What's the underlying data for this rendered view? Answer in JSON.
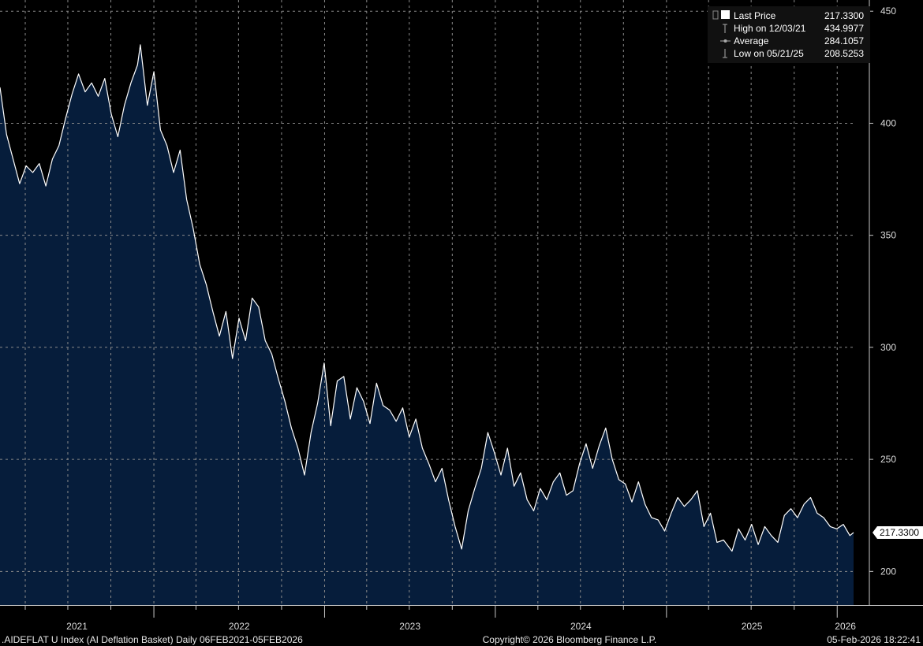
{
  "chart_data": {
    "type": "area",
    "title": ".AIDEFLAT U Index (AI Deflation Basket) Daily 06FEB2021-05FEB2026",
    "ylim": [
      185,
      455
    ],
    "y_ticks": [
      "450",
      "400",
      "350",
      "300",
      "250",
      "200"
    ],
    "x_year_labels": [
      "2021",
      "2022",
      "2023",
      "2024",
      "2025",
      "2026"
    ],
    "grid": true,
    "legend_position": "top-right",
    "legend": [
      {
        "label": "Last Price",
        "value": "217.3300"
      },
      {
        "label": "High on 12/03/21",
        "value": "434.9977"
      },
      {
        "label": "Average",
        "value": "284.1057"
      },
      {
        "label": "Low on 05/21/25",
        "value": "208.5253"
      }
    ],
    "last_value_label": "217.3300",
    "series": [
      {
        "values": [
          [
            "2021-02-06",
            416
          ],
          [
            "2021-02-20",
            395
          ],
          [
            "2021-03-06",
            384
          ],
          [
            "2021-03-20",
            373
          ],
          [
            "2021-04-03",
            381
          ],
          [
            "2021-04-17",
            378
          ],
          [
            "2021-05-01",
            382
          ],
          [
            "2021-05-15",
            372
          ],
          [
            "2021-05-29",
            384
          ],
          [
            "2021-06-12",
            390
          ],
          [
            "2021-06-26",
            402
          ],
          [
            "2021-07-10",
            413
          ],
          [
            "2021-07-24",
            422
          ],
          [
            "2021-08-07",
            414
          ],
          [
            "2021-08-21",
            418
          ],
          [
            "2021-09-04",
            412
          ],
          [
            "2021-09-18",
            420
          ],
          [
            "2021-10-02",
            404
          ],
          [
            "2021-10-16",
            394
          ],
          [
            "2021-10-30",
            408
          ],
          [
            "2021-11-13",
            418
          ],
          [
            "2021-11-27",
            426
          ],
          [
            "2021-12-03",
            435
          ],
          [
            "2021-12-18",
            408
          ],
          [
            "2022-01-01",
            423
          ],
          [
            "2022-01-15",
            397
          ],
          [
            "2022-01-29",
            390
          ],
          [
            "2022-02-12",
            378
          ],
          [
            "2022-02-26",
            388
          ],
          [
            "2022-03-12",
            366
          ],
          [
            "2022-03-26",
            353
          ],
          [
            "2022-04-09",
            337
          ],
          [
            "2022-04-23",
            328
          ],
          [
            "2022-05-07",
            316
          ],
          [
            "2022-05-21",
            305
          ],
          [
            "2022-06-04",
            316
          ],
          [
            "2022-06-18",
            295
          ],
          [
            "2022-07-02",
            313
          ],
          [
            "2022-07-16",
            303
          ],
          [
            "2022-07-30",
            322
          ],
          [
            "2022-08-13",
            318
          ],
          [
            "2022-08-27",
            303
          ],
          [
            "2022-09-10",
            297
          ],
          [
            "2022-09-24",
            286
          ],
          [
            "2022-10-08",
            276
          ],
          [
            "2022-10-22",
            264
          ],
          [
            "2022-11-05",
            255
          ],
          [
            "2022-11-19",
            243
          ],
          [
            "2022-12-03",
            262
          ],
          [
            "2022-12-17",
            275
          ],
          [
            "2022-12-31",
            293
          ],
          [
            "2023-01-14",
            265
          ],
          [
            "2023-01-28",
            285
          ],
          [
            "2023-02-11",
            287
          ],
          [
            "2023-02-25",
            268
          ],
          [
            "2023-03-11",
            282
          ],
          [
            "2023-03-25",
            276
          ],
          [
            "2023-04-08",
            266
          ],
          [
            "2023-04-22",
            284
          ],
          [
            "2023-05-06",
            274
          ],
          [
            "2023-05-20",
            272
          ],
          [
            "2023-06-03",
            267
          ],
          [
            "2023-06-17",
            273
          ],
          [
            "2023-07-01",
            260
          ],
          [
            "2023-07-15",
            268
          ],
          [
            "2023-07-29",
            255
          ],
          [
            "2023-08-12",
            248
          ],
          [
            "2023-08-26",
            240
          ],
          [
            "2023-09-09",
            246
          ],
          [
            "2023-09-23",
            232
          ],
          [
            "2023-10-07",
            220
          ],
          [
            "2023-10-21",
            210
          ],
          [
            "2023-11-04",
            227
          ],
          [
            "2023-11-18",
            237
          ],
          [
            "2023-12-02",
            246
          ],
          [
            "2023-12-16",
            262
          ],
          [
            "2023-12-30",
            253
          ],
          [
            "2024-01-13",
            243
          ],
          [
            "2024-01-27",
            255
          ],
          [
            "2024-02-10",
            238
          ],
          [
            "2024-02-24",
            244
          ],
          [
            "2024-03-09",
            232
          ],
          [
            "2024-03-23",
            227
          ],
          [
            "2024-04-06",
            237
          ],
          [
            "2024-04-20",
            232
          ],
          [
            "2024-05-04",
            240
          ],
          [
            "2024-05-18",
            244
          ],
          [
            "2024-06-01",
            234
          ],
          [
            "2024-06-15",
            236
          ],
          [
            "2024-06-29",
            248
          ],
          [
            "2024-07-13",
            257
          ],
          [
            "2024-07-27",
            246
          ],
          [
            "2024-08-10",
            256
          ],
          [
            "2024-08-24",
            264
          ],
          [
            "2024-09-07",
            250
          ],
          [
            "2024-09-21",
            241
          ],
          [
            "2024-10-05",
            239
          ],
          [
            "2024-10-19",
            231
          ],
          [
            "2024-11-02",
            240
          ],
          [
            "2024-11-16",
            230
          ],
          [
            "2024-11-30",
            224
          ],
          [
            "2024-12-14",
            223
          ],
          [
            "2024-12-28",
            218
          ],
          [
            "2025-01-11",
            226
          ],
          [
            "2025-01-25",
            233
          ],
          [
            "2025-02-08",
            229
          ],
          [
            "2025-02-22",
            232
          ],
          [
            "2025-03-08",
            236
          ],
          [
            "2025-03-22",
            220
          ],
          [
            "2025-04-05",
            226
          ],
          [
            "2025-04-19",
            213
          ],
          [
            "2025-05-03",
            214
          ],
          [
            "2025-05-21",
            209
          ],
          [
            "2025-06-04",
            219
          ],
          [
            "2025-06-18",
            214
          ],
          [
            "2025-07-02",
            221
          ],
          [
            "2025-07-16",
            212
          ],
          [
            "2025-07-30",
            220
          ],
          [
            "2025-08-13",
            216
          ],
          [
            "2025-08-27",
            213
          ],
          [
            "2025-09-10",
            225
          ],
          [
            "2025-09-24",
            228
          ],
          [
            "2025-10-08",
            224
          ],
          [
            "2025-10-22",
            230
          ],
          [
            "2025-11-05",
            233
          ],
          [
            "2025-11-19",
            226
          ],
          [
            "2025-12-03",
            224
          ],
          [
            "2025-12-17",
            220
          ],
          [
            "2025-12-31",
            219
          ],
          [
            "2026-01-14",
            221
          ],
          [
            "2026-01-28",
            216
          ],
          [
            "2026-02-05",
            217.33
          ]
        ]
      }
    ]
  },
  "footer": {
    "left": ".AIDEFLAT U Index (AI Deflation Basket) Daily 06FEB2021-05FEB2026",
    "center": "Copyright© 2026 Bloomberg Finance L.P.",
    "right": "05-Feb-2026 18:22:41"
  },
  "colors": {
    "background": "#000000",
    "area_fill": "#061d3b",
    "line": "#ffffff",
    "grid": "#8a8a8a",
    "last_tag_bg": "#ffffff"
  }
}
